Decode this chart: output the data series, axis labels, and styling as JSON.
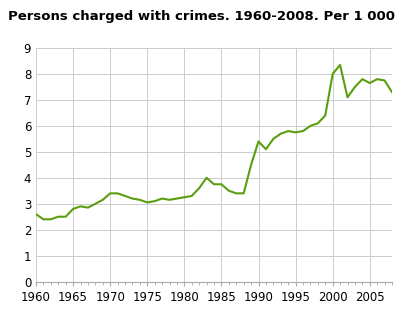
{
  "title": "Persons charged with crimes. 1960-2008. Per 1 000 population",
  "years": [
    1960,
    1961,
    1962,
    1963,
    1964,
    1965,
    1966,
    1967,
    1968,
    1969,
    1970,
    1971,
    1972,
    1973,
    1974,
    1975,
    1976,
    1977,
    1978,
    1979,
    1980,
    1981,
    1982,
    1983,
    1984,
    1985,
    1986,
    1987,
    1988,
    1989,
    1990,
    1991,
    1992,
    1993,
    1994,
    1995,
    1996,
    1997,
    1998,
    1999,
    2000,
    2001,
    2002,
    2003,
    2004,
    2005,
    2006,
    2007,
    2008
  ],
  "values": [
    2.6,
    2.4,
    2.4,
    2.5,
    2.5,
    2.8,
    2.9,
    2.85,
    3.0,
    3.15,
    3.4,
    3.4,
    3.3,
    3.2,
    3.15,
    3.05,
    3.1,
    3.2,
    3.15,
    3.2,
    3.25,
    3.3,
    3.6,
    4.0,
    3.75,
    3.75,
    3.5,
    3.4,
    3.4,
    4.5,
    5.4,
    5.1,
    5.5,
    5.7,
    5.8,
    5.75,
    5.8,
    6.0,
    6.1,
    6.4,
    8.0,
    8.35,
    7.1,
    7.5,
    7.8,
    7.65,
    7.8,
    7.75,
    7.3
  ],
  "line_color": "#5a9e0f",
  "line_width": 1.5,
  "ylim": [
    0,
    9
  ],
  "xlim": [
    1960,
    2008
  ],
  "yticks": [
    0,
    1,
    2,
    3,
    4,
    5,
    6,
    7,
    8,
    9
  ],
  "xticks": [
    1960,
    1965,
    1970,
    1975,
    1980,
    1985,
    1990,
    1995,
    2000,
    2005
  ],
  "grid_color": "#cccccc",
  "bg_color": "#ffffff",
  "title_fontsize": 9.5,
  "tick_fontsize": 8.5
}
